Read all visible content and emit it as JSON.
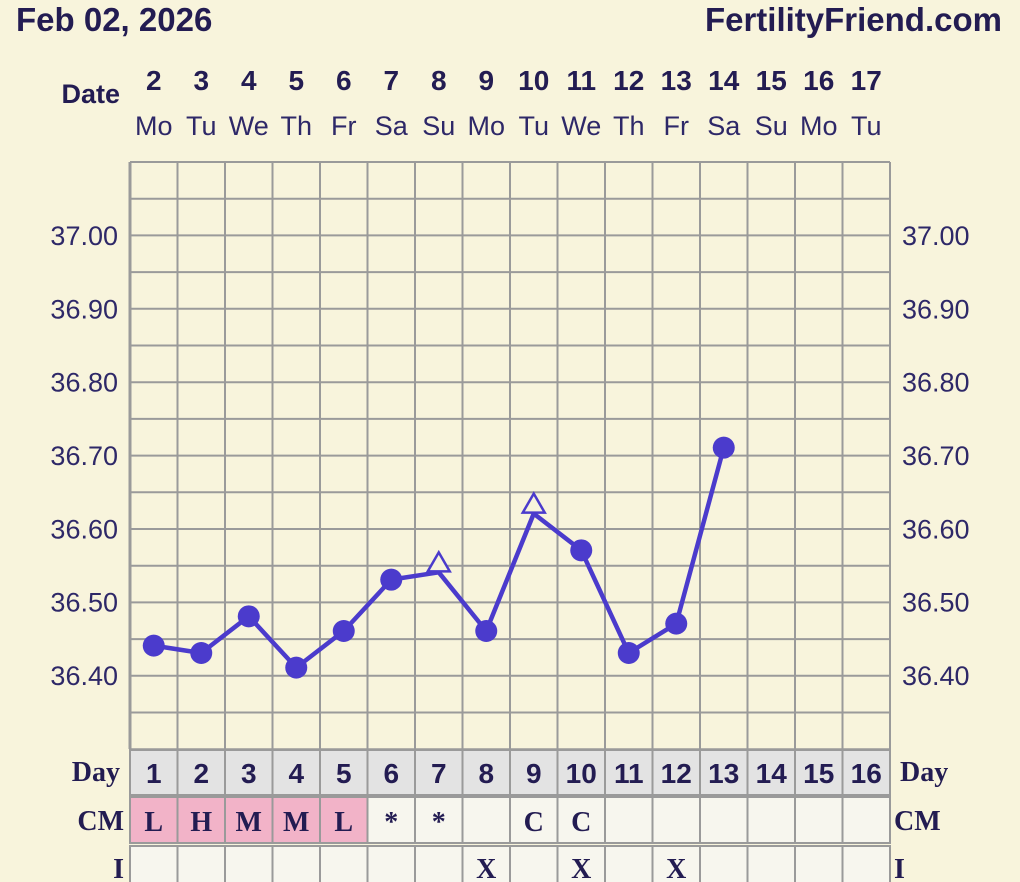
{
  "header": {
    "date": "Feb 02, 2026",
    "site": "FertilityFriend.com"
  },
  "labels": {
    "date": "Date",
    "day": "Day",
    "cm": "CM",
    "i": "I"
  },
  "colors": {
    "background": "#f8f4dc",
    "line": "#4b3bcc",
    "text": "#231c52",
    "grid": "#9a9a9a",
    "cm_highlight": "#f2b3c8",
    "day_row": "#e3e3e3"
  },
  "chart_data": {
    "type": "line",
    "dates": [
      "2",
      "3",
      "4",
      "5",
      "6",
      "7",
      "8",
      "9",
      "10",
      "11",
      "12",
      "13",
      "14",
      "15",
      "16",
      "17"
    ],
    "weekdays": [
      "Mo",
      "Tu",
      "We",
      "Th",
      "Fr",
      "Sa",
      "Su",
      "Mo",
      "Tu",
      "We",
      "Th",
      "Fr",
      "Sa",
      "Su",
      "Mo",
      "Tu"
    ],
    "cycle_days": [
      "1",
      "2",
      "3",
      "4",
      "5",
      "6",
      "7",
      "8",
      "9",
      "10",
      "11",
      "12",
      "13",
      "14",
      "15",
      "16"
    ],
    "temperatures": [
      36.44,
      36.43,
      36.48,
      36.41,
      36.46,
      36.53,
      36.54,
      36.46,
      36.62,
      36.57,
      36.43,
      36.47,
      36.71,
      null,
      null,
      null
    ],
    "markers": [
      "circle",
      "circle",
      "circle",
      "circle",
      "circle",
      "circle",
      "open-triangle",
      "circle",
      "open-triangle",
      "circle",
      "circle",
      "circle",
      "circle",
      null,
      null,
      null
    ],
    "y_ticks": [
      "37.00",
      "36.90",
      "36.80",
      "36.70",
      "36.60",
      "36.50",
      "36.40"
    ],
    "ylim": [
      36.31,
      37.1
    ],
    "grid": true,
    "cm": [
      "L",
      "H",
      "M",
      "M",
      "L",
      "*",
      "*",
      "",
      "C",
      "C",
      "",
      "",
      "",
      "",
      "",
      ""
    ],
    "cm_highlighted": [
      true,
      true,
      true,
      true,
      true,
      false,
      false,
      false,
      false,
      false,
      false,
      false,
      false,
      false,
      false,
      false
    ],
    "intercourse": [
      "",
      "",
      "",
      "",
      "",
      "",
      "",
      "X",
      "",
      "X",
      "",
      "X",
      "",
      "",
      "",
      ""
    ]
  }
}
